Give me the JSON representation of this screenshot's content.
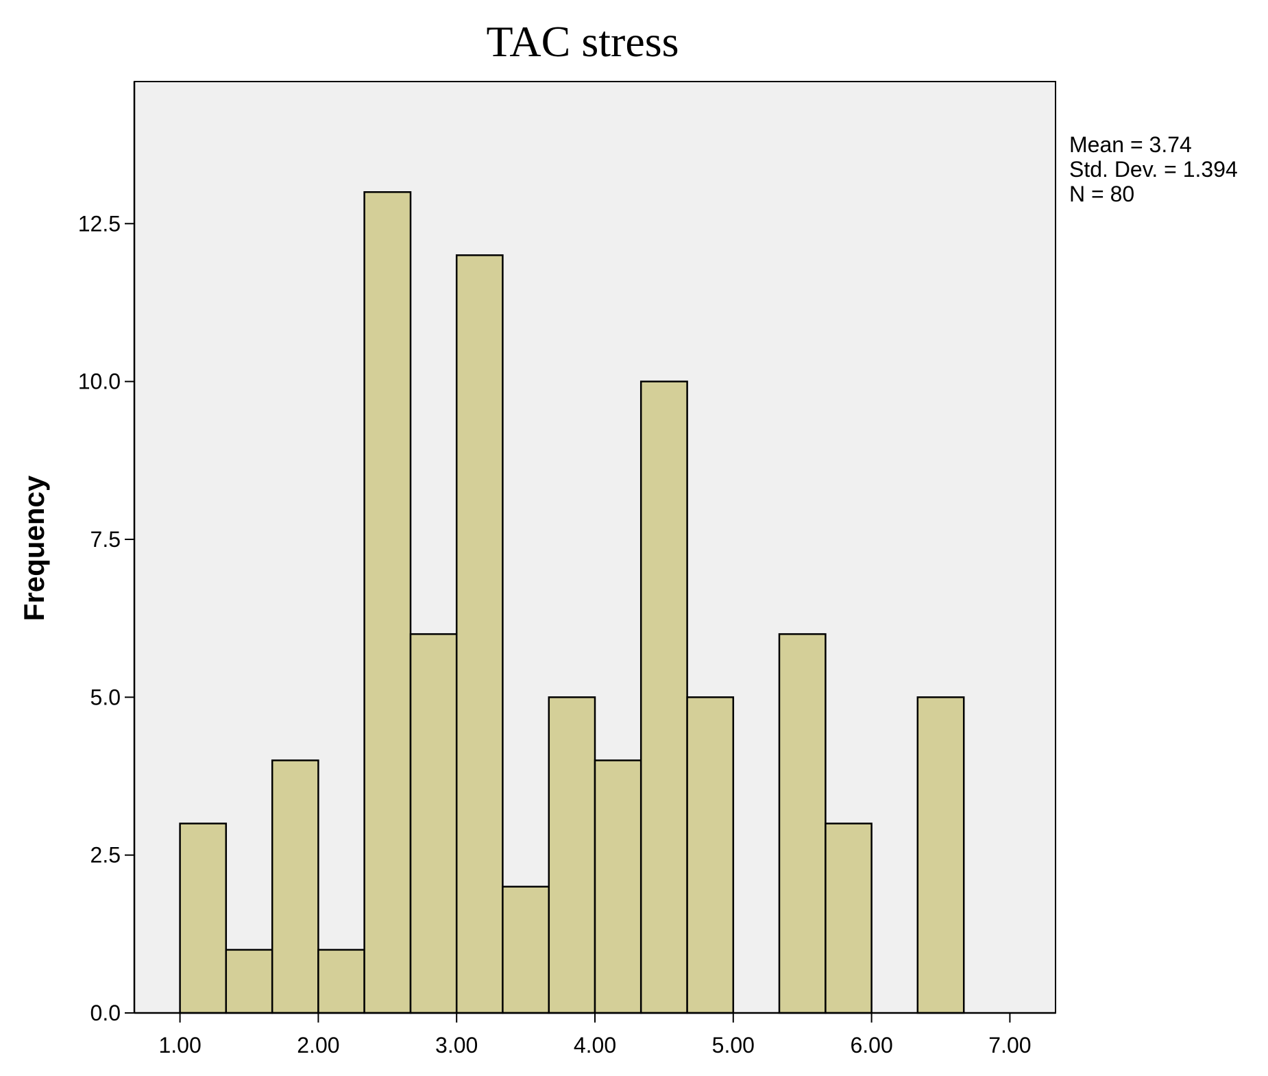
{
  "chart_data": {
    "type": "bar",
    "title": "TAC stress",
    "xlabel": "",
    "ylabel": "Frequency",
    "bin_width": 0.333,
    "bins": [
      {
        "start": 1.0,
        "end": 1.333,
        "count": 3
      },
      {
        "start": 1.333,
        "end": 1.667,
        "count": 1
      },
      {
        "start": 1.667,
        "end": 2.0,
        "count": 4
      },
      {
        "start": 2.0,
        "end": 2.333,
        "count": 1
      },
      {
        "start": 2.333,
        "end": 2.667,
        "count": 13
      },
      {
        "start": 2.667,
        "end": 3.0,
        "count": 6
      },
      {
        "start": 3.0,
        "end": 3.333,
        "count": 12
      },
      {
        "start": 3.333,
        "end": 3.667,
        "count": 2
      },
      {
        "start": 3.667,
        "end": 4.0,
        "count": 5
      },
      {
        "start": 4.0,
        "end": 4.333,
        "count": 4
      },
      {
        "start": 4.333,
        "end": 4.667,
        "count": 10
      },
      {
        "start": 4.667,
        "end": 5.0,
        "count": 5
      },
      {
        "start": 5.0,
        "end": 5.333,
        "count": 0
      },
      {
        "start": 5.333,
        "end": 5.667,
        "count": 6
      },
      {
        "start": 5.667,
        "end": 6.0,
        "count": 3
      },
      {
        "start": 6.0,
        "end": 6.333,
        "count": 0
      },
      {
        "start": 6.333,
        "end": 6.667,
        "count": 5
      }
    ],
    "xlim": [
      0.67,
      7.33
    ],
    "ylim": [
      0,
      14.75
    ],
    "x_ticks": [
      1,
      2,
      3,
      4,
      5,
      6,
      7
    ],
    "x_tick_labels": [
      "1.00",
      "2.00",
      "3.00",
      "4.00",
      "5.00",
      "6.00",
      "7.00"
    ],
    "y_ticks": [
      0,
      2.5,
      5,
      7.5,
      10,
      12.5
    ],
    "y_tick_labels": [
      "0.0",
      "2.5",
      "5.0",
      "7.5",
      "10.0",
      "12.5"
    ],
    "grid": false,
    "stats": [
      "Mean = 3.74",
      "Std. Dev. = 1.394",
      "N = 80"
    ],
    "colors": {
      "bar_fill": "#d4cf98",
      "bar_stroke": "#000000",
      "plot_background": "#f0f0f0",
      "axis": "#000000"
    }
  }
}
